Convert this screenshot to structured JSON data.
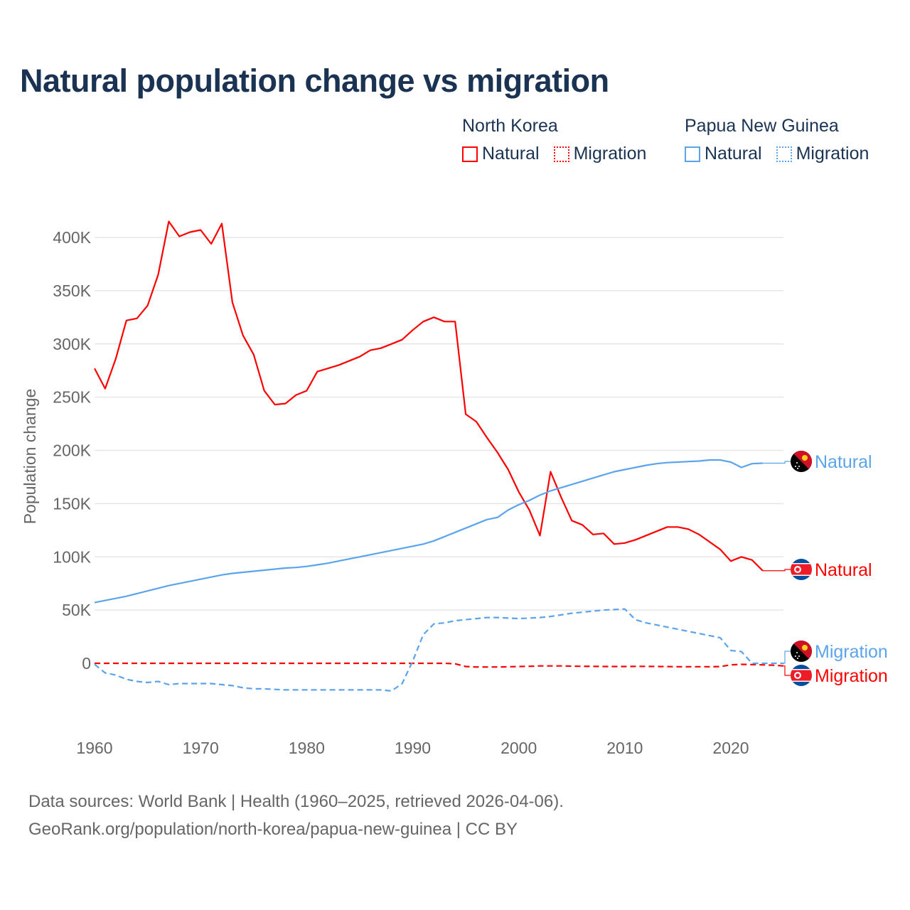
{
  "title": "Natural population change vs migration",
  "legend": [
    {
      "country": "North Korea",
      "items": [
        {
          "label": "Natural",
          "style": "solid"
        },
        {
          "label": "Migration",
          "style": "dotted"
        }
      ],
      "color": "#ff0000"
    },
    {
      "country": "Papua New Guinea",
      "items": [
        {
          "label": "Natural",
          "style": "solid"
        },
        {
          "label": "Migration",
          "style": "dotted"
        }
      ],
      "color": "#5ba4ec"
    }
  ],
  "footer": {
    "line1": "Data sources: World Bank | Health (1960–2025, retrieved 2026-04-06).",
    "line2": "GeoRank.org/population/north-korea/papua-new-guinea | CC BY"
  },
  "chart_data": {
    "type": "line",
    "title": "Natural population change vs migration",
    "xlabel": "",
    "ylabel": "Population change",
    "xlim": [
      1960,
      2025
    ],
    "ylim": [
      -50000,
      420000
    ],
    "x_ticks": [
      1960,
      1970,
      1980,
      1990,
      2000,
      2010,
      2020
    ],
    "x_tick_labels": [
      "1960",
      "1970",
      "1980",
      "1990",
      "2000",
      "2010",
      "2020"
    ],
    "y_ticks": [
      0,
      50000,
      100000,
      150000,
      200000,
      250000,
      300000,
      350000,
      400000
    ],
    "y_tick_labels": [
      "0",
      "50K",
      "100K",
      "150K",
      "200K",
      "250K",
      "300K",
      "350K",
      "400K"
    ],
    "grid": true,
    "series": [
      {
        "name": "North Korea Natural",
        "end_label": "Natural",
        "flag": "north-korea",
        "color": "#ff0000",
        "dash": "solid",
        "x_start": 1960,
        "values": [
          277000,
          258000,
          286000,
          322000,
          324000,
          336000,
          365000,
          415000,
          401000,
          405000,
          407000,
          394000,
          413000,
          339000,
          308000,
          290000,
          256000,
          243000,
          244000,
          252000,
          256000,
          274000,
          277000,
          280000,
          284000,
          288000,
          294000,
          296000,
          300000,
          304000,
          313000,
          321000,
          325000,
          321000,
          321000,
          234000,
          227000,
          212000,
          198000,
          182000,
          161000,
          144000,
          120000,
          180000,
          156000,
          134000,
          130000,
          121000,
          122000,
          112000,
          113000,
          116000,
          120000,
          124000,
          128000,
          128000,
          126000,
          121000,
          114000,
          107000,
          96000,
          100000,
          97000,
          87000
        ]
      },
      {
        "name": "North Korea Migration",
        "end_label": "Migration",
        "flag": "north-korea",
        "color": "#ff0000",
        "dash": "dashed",
        "x_start": 1960,
        "values": [
          0,
          0,
          0,
          0,
          0,
          0,
          0,
          0,
          0,
          0,
          0,
          0,
          0,
          0,
          0,
          0,
          0,
          0,
          0,
          0,
          0,
          0,
          0,
          0,
          0,
          0,
          0,
          0,
          0,
          0,
          0,
          0,
          0,
          0,
          -500,
          -3000,
          -3500,
          -3500,
          -3500,
          -3300,
          -3000,
          -2800,
          -2500,
          -2500,
          -2500,
          -2700,
          -2800,
          -2900,
          -3000,
          -3000,
          -3000,
          -2900,
          -2900,
          -3000,
          -3100,
          -3200,
          -3200,
          -3200,
          -3200,
          -3100,
          -1500,
          -1000,
          -1200,
          -1500,
          -1800,
          -2500
        ]
      },
      {
        "name": "Papua New Guinea Natural",
        "end_label": "Natural",
        "flag": "papua-new-guinea",
        "color": "#5ba4ec",
        "dash": "solid",
        "x_start": 1960,
        "values": [
          57000,
          59000,
          61000,
          63000,
          65500,
          68000,
          70500,
          73000,
          75000,
          77000,
          79000,
          81000,
          83000,
          84500,
          85500,
          86500,
          87500,
          88500,
          89500,
          90000,
          91000,
          92500,
          94000,
          96000,
          98000,
          100000,
          102000,
          104000,
          106000,
          108000,
          110000,
          112000,
          115000,
          119000,
          123000,
          127000,
          131000,
          135000,
          137000,
          144000,
          149000,
          153000,
          158000,
          162000,
          165000,
          168000,
          171000,
          174000,
          177000,
          180000,
          182000,
          184000,
          186000,
          187500,
          188500,
          189000,
          189500,
          190000,
          191000,
          191000,
          189000,
          184000,
          187500,
          188000
        ]
      },
      {
        "name": "Papua New Guinea Migration",
        "end_label": "Migration",
        "flag": "papua-new-guinea",
        "color": "#5ba4ec",
        "dash": "dashed",
        "x_start": 1960,
        "values": [
          -1000,
          -9000,
          -11000,
          -15000,
          -17000,
          -18000,
          -17000,
          -20000,
          -19000,
          -19000,
          -19000,
          -19000,
          -20000,
          -21000,
          -23000,
          -24000,
          -24000,
          -24500,
          -25000,
          -25000,
          -25000,
          -25000,
          -25000,
          -25000,
          -25000,
          -25000,
          -25000,
          -25000,
          -26000,
          -19000,
          2000,
          27000,
          37000,
          38000,
          40000,
          41000,
          42000,
          43000,
          43000,
          42500,
          42000,
          42500,
          43000,
          44000,
          45500,
          47000,
          48000,
          49000,
          50000,
          50500,
          51000,
          41000,
          38000,
          36000,
          34000,
          32000,
          30000,
          28000,
          26000,
          24000,
          12000,
          11000,
          0,
          0,
          0,
          0
        ]
      }
    ]
  }
}
